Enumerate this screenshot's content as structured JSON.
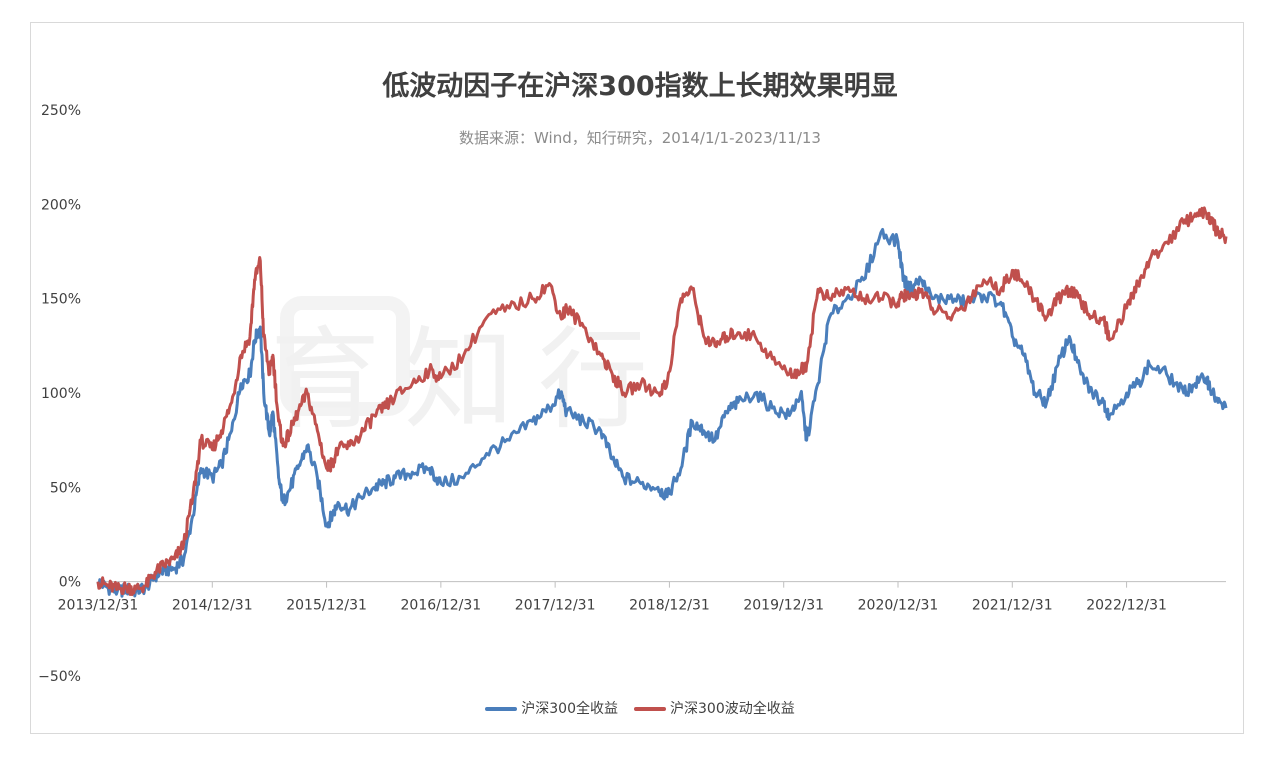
{
  "chart_data": {
    "type": "line",
    "title": "低波动因子在沪深300指数上长期效果明显",
    "subtitle": "数据来源：Wind，知行研究，2014/1/1-2023/11/13",
    "watermark": "育知行",
    "x_tick_labels": [
      "2013/12/31",
      "2014/12/31",
      "2015/12/31",
      "2016/12/31",
      "2017/12/31",
      "2018/12/31",
      "2019/12/31",
      "2020/12/31",
      "2021/12/31",
      "2022/12/31"
    ],
    "y_tick_labels": [
      "250%",
      "200%",
      "150%",
      "100%",
      "50%",
      "0%",
      "−50%"
    ],
    "ylim": [
      -50,
      250
    ],
    "xlim": [
      2014.0,
      2023.87
    ],
    "grid": false,
    "legend_position": "bottom",
    "series": [
      {
        "name": "沪深300全收益",
        "color": "#4a7ebb",
        "x": [
          2014.0,
          2014.08,
          2014.17,
          2014.25,
          2014.33,
          2014.42,
          2014.5,
          2014.58,
          2014.67,
          2014.75,
          2014.83,
          2014.9,
          2015.0,
          2015.08,
          2015.17,
          2015.25,
          2015.33,
          2015.37,
          2015.42,
          2015.45,
          2015.5,
          2015.53,
          2015.58,
          2015.62,
          2015.67,
          2015.75,
          2015.83,
          2015.92,
          2016.0,
          2016.05,
          2016.1,
          2016.2,
          2016.3,
          2016.42,
          2016.5,
          2016.6,
          2016.75,
          2016.9,
          2017.0,
          2017.2,
          2017.4,
          2017.6,
          2017.8,
          2017.95,
          2018.05,
          2018.1,
          2018.25,
          2018.4,
          2018.5,
          2018.6,
          2018.75,
          2018.9,
          2018.98,
          2019.1,
          2019.2,
          2019.3,
          2019.4,
          2019.5,
          2019.6,
          2019.75,
          2019.9,
          2020.05,
          2020.15,
          2020.2,
          2020.3,
          2020.4,
          2020.55,
          2020.7,
          2020.85,
          2021.0,
          2021.05,
          2021.1,
          2021.2,
          2021.3,
          2021.45,
          2021.6,
          2021.75,
          2021.9,
          2022.0,
          2022.1,
          2022.2,
          2022.3,
          2022.4,
          2022.5,
          2022.6,
          2022.7,
          2022.8,
          2022.85,
          2023.0,
          2023.1,
          2023.2,
          2023.35,
          2023.5,
          2023.6,
          2023.7,
          2023.75,
          2023.8,
          2023.87
        ],
        "y": [
          0,
          -3,
          -5,
          -4,
          -5,
          -3,
          3,
          6,
          7,
          12,
          35,
          60,
          55,
          62,
          80,
          105,
          110,
          128,
          135,
          100,
          78,
          90,
          55,
          42,
          48,
          60,
          72,
          55,
          30,
          35,
          42,
          38,
          45,
          50,
          52,
          55,
          58,
          60,
          52,
          55,
          68,
          75,
          85,
          92,
          100,
          90,
          85,
          80,
          65,
          55,
          52,
          50,
          45,
          60,
          85,
          80,
          75,
          90,
          95,
          100,
          92,
          88,
          100,
          75,
          105,
          140,
          150,
          160,
          185,
          180,
          160,
          155,
          160,
          150,
          150,
          148,
          152,
          148,
          130,
          120,
          100,
          95,
          115,
          130,
          110,
          100,
          95,
          88,
          100,
          105,
          115,
          110,
          100,
          105,
          108,
          100,
          95,
          92
        ]
      },
      {
        "name": "沪深300波动全收益",
        "color": "#c0504d",
        "x": [
          2014.0,
          2014.08,
          2014.17,
          2014.25,
          2014.33,
          2014.42,
          2014.5,
          2014.58,
          2014.67,
          2014.75,
          2014.83,
          2014.9,
          2015.0,
          2015.08,
          2015.17,
          2015.25,
          2015.33,
          2015.37,
          2015.42,
          2015.45,
          2015.5,
          2015.53,
          2015.58,
          2015.62,
          2015.67,
          2015.75,
          2015.83,
          2015.92,
          2016.0,
          2016.05,
          2016.1,
          2016.2,
          2016.3,
          2016.42,
          2016.5,
          2016.6,
          2016.75,
          2016.9,
          2017.0,
          2017.2,
          2017.4,
          2017.6,
          2017.8,
          2017.95,
          2018.05,
          2018.1,
          2018.25,
          2018.4,
          2018.5,
          2018.6,
          2018.75,
          2018.9,
          2018.98,
          2019.1,
          2019.2,
          2019.3,
          2019.4,
          2019.5,
          2019.6,
          2019.75,
          2019.9,
          2020.05,
          2020.15,
          2020.2,
          2020.3,
          2020.4,
          2020.55,
          2020.7,
          2020.85,
          2021.0,
          2021.05,
          2021.1,
          2021.2,
          2021.3,
          2021.45,
          2021.6,
          2021.75,
          2021.9,
          2022.0,
          2022.1,
          2022.2,
          2022.3,
          2022.4,
          2022.5,
          2022.6,
          2022.7,
          2022.8,
          2022.85,
          2023.0,
          2023.1,
          2023.2,
          2023.35,
          2023.5,
          2023.6,
          2023.7,
          2023.75,
          2023.8,
          2023.87
        ],
        "y": [
          0,
          -2,
          -4,
          -3,
          -4,
          -2,
          5,
          9,
          12,
          20,
          45,
          75,
          70,
          80,
          95,
          120,
          130,
          160,
          170,
          130,
          110,
          120,
          85,
          72,
          78,
          90,
          100,
          80,
          60,
          63,
          70,
          72,
          78,
          88,
          92,
          98,
          105,
          112,
          108,
          120,
          140,
          145,
          150,
          158,
          140,
          145,
          135,
          120,
          110,
          100,
          105,
          100,
          105,
          150,
          155,
          130,
          125,
          130,
          132,
          130,
          118,
          110,
          112,
          115,
          155,
          150,
          155,
          150,
          150,
          148,
          152,
          150,
          155,
          145,
          140,
          148,
          160,
          155,
          165,
          158,
          150,
          140,
          150,
          155,
          148,
          140,
          140,
          128,
          145,
          158,
          170,
          180,
          190,
          195,
          195,
          190,
          185,
          183
        ]
      }
    ]
  }
}
